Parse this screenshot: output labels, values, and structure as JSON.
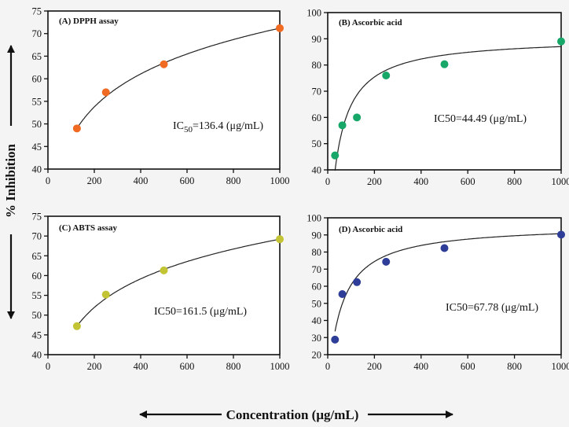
{
  "y_axis_label": "% Inhibition",
  "x_axis_label": "Concentration (μg/mL)",
  "chart_data": [
    {
      "id": "A",
      "type": "scatter",
      "title": "(A) DPPH assay",
      "annotation": {
        "text": "IC",
        "sub": "50",
        "rest": "=136.4 (μg/mL)"
      },
      "color": "#f06a22",
      "x": [
        125,
        250,
        500,
        1000
      ],
      "y": [
        49,
        57,
        63.2,
        71.2
      ],
      "xlim": [
        0,
        1000
      ],
      "xticks": [
        0,
        200,
        400,
        600,
        800,
        1000
      ],
      "ylim": [
        40,
        75
      ],
      "yticks": [
        40,
        45,
        50,
        55,
        60,
        65,
        70,
        75
      ],
      "fit": {
        "type": "log",
        "a": -1.6,
        "b": 10.5
      }
    },
    {
      "id": "B",
      "type": "scatter",
      "title": "(B) Ascorbic acid",
      "annotation": {
        "text": "IC50=44.49 (μg/mL)"
      },
      "color": "#17a769",
      "x": [
        31.25,
        62.5,
        125,
        250,
        500,
        1000
      ],
      "y": [
        45.5,
        57,
        60,
        76,
        80.3,
        89
      ],
      "xlim": [
        0,
        1000
      ],
      "xticks": [
        0,
        200,
        400,
        600,
        800,
        1000
      ],
      "ylim": [
        40,
        100
      ],
      "yticks": [
        40,
        50,
        60,
        70,
        80,
        90,
        100
      ],
      "fit": {
        "type": "hyper",
        "a": 90.5,
        "k": 40,
        "from": 31.25
      }
    },
    {
      "id": "C",
      "type": "scatter",
      "title": "(C) ABTS assay",
      "annotation": {
        "text": "IC50=161.5 (μg/mL)"
      },
      "color": "#c2c433",
      "x": [
        125,
        250,
        500,
        1000
      ],
      "y": [
        47.2,
        55.2,
        61.3,
        69.2
      ],
      "xlim": [
        0,
        1000
      ],
      "xticks": [
        0,
        200,
        400,
        600,
        800,
        1000
      ],
      "ylim": [
        40,
        75
      ],
      "yticks": [
        40,
        45,
        50,
        55,
        60,
        65,
        70,
        75
      ],
      "fit": {
        "type": "log",
        "a": -2.8,
        "b": 10.5
      }
    },
    {
      "id": "D",
      "type": "scatter",
      "title": "(D) Ascorbic acid",
      "annotation": {
        "text": "IC50=67.78 (μg/mL)"
      },
      "color": "#2e3e98",
      "x": [
        31.25,
        62.5,
        125,
        250,
        500,
        1000
      ],
      "y": [
        28.8,
        55.4,
        62.4,
        74.3,
        82.3,
        90.2
      ],
      "xlim": [
        0,
        1000
      ],
      "xticks": [
        0,
        200,
        400,
        600,
        800,
        1000
      ],
      "ylim": [
        20,
        100
      ],
      "yticks": [
        20,
        30,
        40,
        50,
        60,
        70,
        80,
        90,
        100
      ],
      "fit": {
        "type": "hyper",
        "a": 96,
        "k": 58,
        "from": 31.25
      }
    }
  ]
}
